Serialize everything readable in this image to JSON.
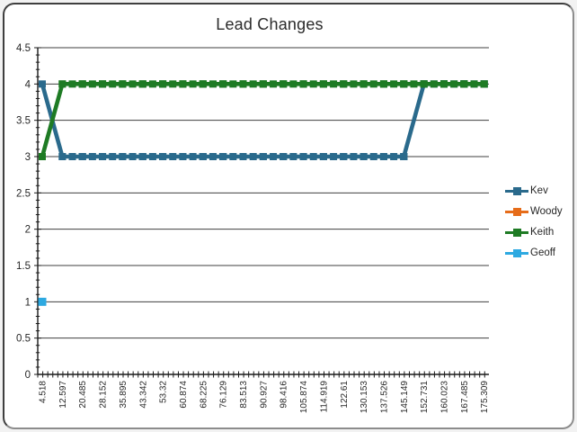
{
  "chart_data": {
    "type": "line",
    "title": "Lead Changes",
    "categories": [
      "4.518",
      "12.597",
      "20.485",
      "28.152",
      "35.895",
      "43.342",
      "53.32",
      "60.874",
      "68.225",
      "76.129",
      "83.513",
      "90.927",
      "98.416",
      "105.874",
      "114.919",
      "122.61",
      "130.153",
      "137.526",
      "145.149",
      "152.731",
      "160.023",
      "167.485",
      "175.309"
    ],
    "series": [
      {
        "name": "Kev",
        "color": "#2a6a8c",
        "values": [
          4,
          3,
          3,
          3,
          3,
          3,
          3,
          3,
          3,
          3,
          3,
          3,
          3,
          3,
          3,
          3,
          3,
          3,
          3,
          4,
          4,
          4,
          4
        ]
      },
      {
        "name": "Woody",
        "color": "#e66c19",
        "values": [
          null,
          null,
          null,
          null,
          null,
          null,
          null,
          null,
          null,
          null,
          null,
          null,
          null,
          null,
          null,
          null,
          null,
          null,
          null,
          null,
          null,
          null,
          null
        ]
      },
      {
        "name": "Keith",
        "color": "#1e7b24",
        "values": [
          3,
          4,
          4,
          4,
          4,
          4,
          4,
          4,
          4,
          4,
          4,
          4,
          4,
          4,
          4,
          4,
          4,
          4,
          4,
          4,
          4,
          4,
          4
        ]
      },
      {
        "name": "Geoff",
        "color": "#2da9e1",
        "values": [
          1,
          null,
          null,
          null,
          null,
          null,
          null,
          null,
          null,
          null,
          null,
          null,
          null,
          null,
          null,
          null,
          null,
          null,
          null,
          null,
          null,
          null,
          null
        ]
      }
    ],
    "ylim": [
      0,
      4.5
    ],
    "yticks": [
      "0",
      "0.5",
      "1",
      "1.5",
      "2",
      "2.5",
      "3",
      "3.5",
      "4",
      "4.5"
    ],
    "xlabel": "",
    "ylabel": "",
    "grid": "horizontal-major",
    "minor_y_tick_step": 0.1,
    "legend_position": "right",
    "marker": "square-dash",
    "axis_color": "#1a1a1a",
    "gridline_color": "#3f3f3f",
    "label_color": "#262626",
    "title_color": "#2b2b2b"
  }
}
